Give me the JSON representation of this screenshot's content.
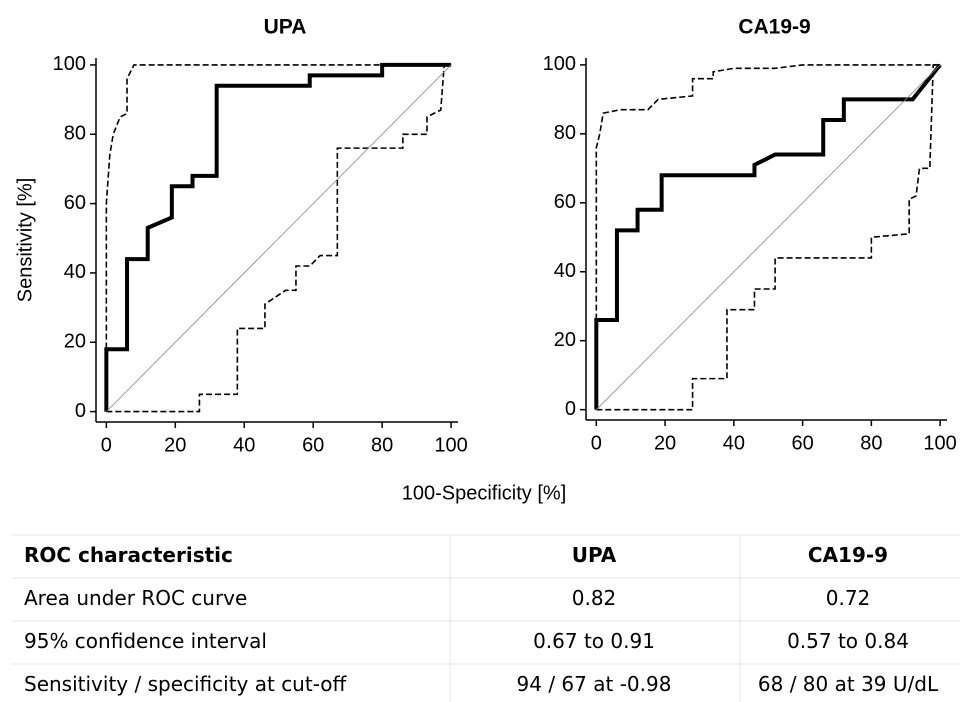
{
  "chart_data": [
    {
      "type": "line",
      "title": "UPA",
      "ylabel": "Sensitivity [%]",
      "xlim": [
        -3,
        102
      ],
      "ylim": [
        -3,
        102
      ],
      "xticks": [
        0,
        20,
        40,
        60,
        80,
        100
      ],
      "yticks": [
        0,
        20,
        40,
        60,
        80,
        100
      ],
      "series": [
        {
          "color": "#000000",
          "width": 4,
          "dashed": false,
          "x": [
            0,
            0,
            6,
            6,
            12,
            12,
            19,
            19,
            25,
            25,
            32,
            32,
            59,
            59,
            80,
            80,
            100
          ],
          "values": [
            0,
            18,
            18,
            44,
            44,
            53,
            56,
            65,
            65,
            68,
            68,
            94,
            94,
            97,
            97,
            100,
            100
          ]
        },
        {
          "color": "#000000",
          "width": 1.6,
          "dashed": true,
          "x": [
            0,
            0,
            1,
            2,
            4,
            6,
            6,
            8,
            100
          ],
          "values": [
            0,
            60,
            74,
            80,
            85,
            86,
            96,
            100,
            100
          ]
        },
        {
          "color": "#000000",
          "width": 1.6,
          "dashed": true,
          "x": [
            0,
            27,
            27,
            38,
            38,
            46,
            46,
            52,
            55,
            55,
            59,
            62,
            67,
            67,
            86,
            86,
            93,
            93,
            97,
            98,
            100
          ],
          "values": [
            0,
            0,
            5,
            5,
            24,
            24,
            31,
            35,
            35,
            42,
            42,
            45,
            45,
            76,
            76,
            80,
            80,
            85,
            87,
            100,
            100
          ]
        },
        {
          "color": "#888888",
          "width": 0.8,
          "dashed": false,
          "x": [
            0,
            100
          ],
          "values": [
            0,
            100
          ]
        }
      ]
    },
    {
      "type": "line",
      "title": "CA19-9",
      "xlim": [
        -3,
        102
      ],
      "ylim": [
        -3,
        102
      ],
      "xticks": [
        0,
        20,
        40,
        60,
        80,
        100
      ],
      "yticks": [
        0,
        20,
        40,
        60,
        80,
        100
      ],
      "series": [
        {
          "color": "#000000",
          "width": 4,
          "dashed": false,
          "x": [
            0,
            0,
            6,
            6,
            12,
            12,
            19,
            19,
            46,
            46,
            52,
            66,
            66,
            72,
            72,
            92,
            100
          ],
          "values": [
            0,
            26,
            26,
            52,
            52,
            58,
            58,
            68,
            68,
            71,
            74,
            74,
            84,
            84,
            90,
            90,
            100
          ]
        },
        {
          "color": "#000000",
          "width": 1.6,
          "dashed": true,
          "x": [
            0,
            0,
            1,
            2,
            7,
            15,
            18,
            28,
            28,
            34,
            34,
            40,
            52,
            60,
            100
          ],
          "values": [
            0,
            76,
            80,
            86,
            87,
            87,
            90,
            91,
            96,
            96,
            98,
            99,
            99,
            100,
            100
          ]
        },
        {
          "color": "#000000",
          "width": 1.6,
          "dashed": true,
          "x": [
            0,
            28,
            28,
            38,
            38,
            46,
            46,
            52,
            52,
            80,
            80,
            91,
            91,
            93,
            94,
            97,
            98,
            100
          ],
          "values": [
            0,
            0,
            9,
            9,
            29,
            29,
            35,
            35,
            44,
            44,
            50,
            51,
            61,
            62,
            70,
            70,
            100,
            100
          ]
        },
        {
          "color": "#888888",
          "width": 0.8,
          "dashed": false,
          "x": [
            0,
            100
          ],
          "values": [
            0,
            100
          ]
        }
      ]
    }
  ],
  "xlabel": "100-Specificity [%]",
  "table": {
    "header": [
      "ROC characteristic",
      "UPA",
      "CA19-9"
    ],
    "rows": [
      [
        "Area under ROC curve",
        "0.82",
        "0.72"
      ],
      [
        "95% confidence interval",
        "0.67 to 0.91",
        "0.57 to 0.84"
      ],
      [
        "Sensitivity / specificity at cut-off",
        "94 / 67 at -0.98",
        "68 / 80 at 39 U/dL"
      ]
    ]
  }
}
